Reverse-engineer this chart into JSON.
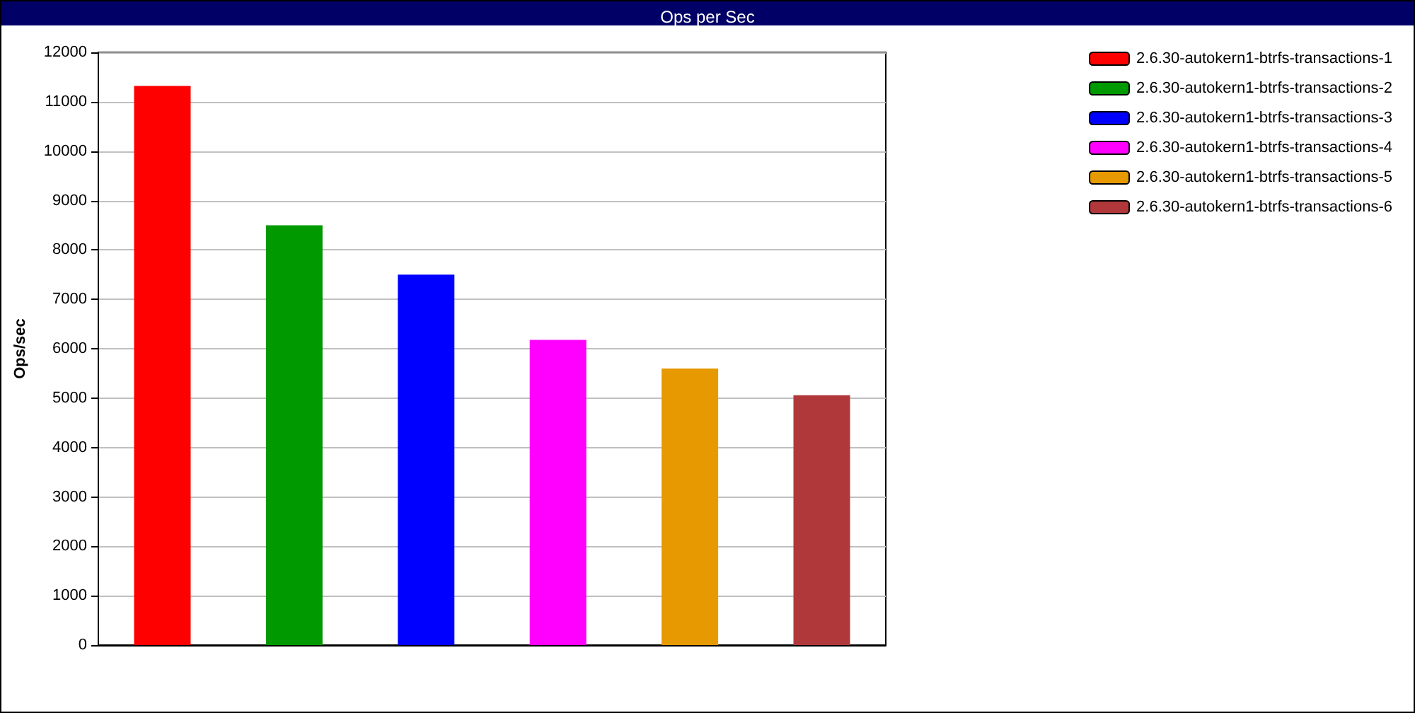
{
  "chart_data": {
    "type": "bar",
    "title": "Ops per Sec",
    "ylabel": "Ops/sec",
    "categories": [
      null
    ],
    "series": [
      {
        "name": "2.6.30-autokern1-btrfs-transactions-1",
        "color": "#ff0000",
        "values": [
          11320
        ]
      },
      {
        "name": "2.6.30-autokern1-btrfs-transactions-2",
        "color": "#009900",
        "values": [
          8500
        ]
      },
      {
        "name": "2.6.30-autokern1-btrfs-transactions-3",
        "color": "#0000ff",
        "values": [
          7500
        ]
      },
      {
        "name": "2.6.30-autokern1-btrfs-transactions-4",
        "color": "#ff00ff",
        "values": [
          6180
        ]
      },
      {
        "name": "2.6.30-autokern1-btrfs-transactions-5",
        "color": "#e69900",
        "values": [
          5600
        ]
      },
      {
        "name": "2.6.30-autokern1-btrfs-transactions-6",
        "color": "#b0383b",
        "values": [
          5060
        ]
      }
    ],
    "ylim": [
      0,
      12000
    ],
    "yticks": [
      0,
      1000,
      2000,
      3000,
      4000,
      5000,
      6000,
      7000,
      8000,
      9000,
      10000,
      11000,
      12000
    ],
    "grid": "y",
    "legend": "right"
  }
}
